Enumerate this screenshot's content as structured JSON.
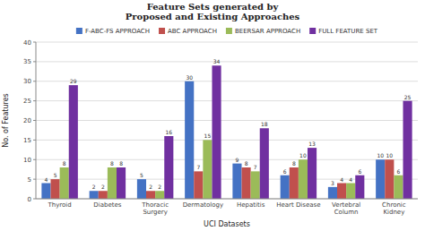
{
  "chart_data": {
    "type": "bar",
    "title": "Feature Sets generated by\nProposed and Existing Approaches",
    "x_label": "UCI Datasets",
    "y_label": "No. of Features",
    "categories": [
      "Thyroid",
      "Diabetes",
      "Thoracic\nSurgery",
      "Dermatology",
      "Hepatitis",
      "Heart Disease",
      "Vertebral\nColumn",
      "Chronic\nKidney"
    ],
    "series": [
      {
        "name": "F-ABC-FS APPROACH",
        "color": "#4472c4",
        "values": [
          4,
          2,
          5,
          30,
          9,
          6,
          3,
          10
        ]
      },
      {
        "name": "ABC APPROACH",
        "color": "#c0504d",
        "values": [
          5,
          2,
          2,
          7,
          8,
          8,
          4,
          10
        ]
      },
      {
        "name": "BEERSAR APPROACH",
        "color": "#9bbb59",
        "values": [
          8,
          8,
          2,
          15,
          7,
          10,
          4,
          6
        ]
      },
      {
        "name": "FULL FEATURE SET",
        "color": "#7030a0",
        "values": [
          29,
          8,
          16,
          34,
          18,
          13,
          6,
          25
        ]
      }
    ],
    "ylim": [
      0,
      40
    ],
    "yticks": [
      0,
      5,
      10,
      15,
      20,
      25,
      30,
      35,
      40
    ],
    "grid": true,
    "legend": "top",
    "data_labels": true
  }
}
